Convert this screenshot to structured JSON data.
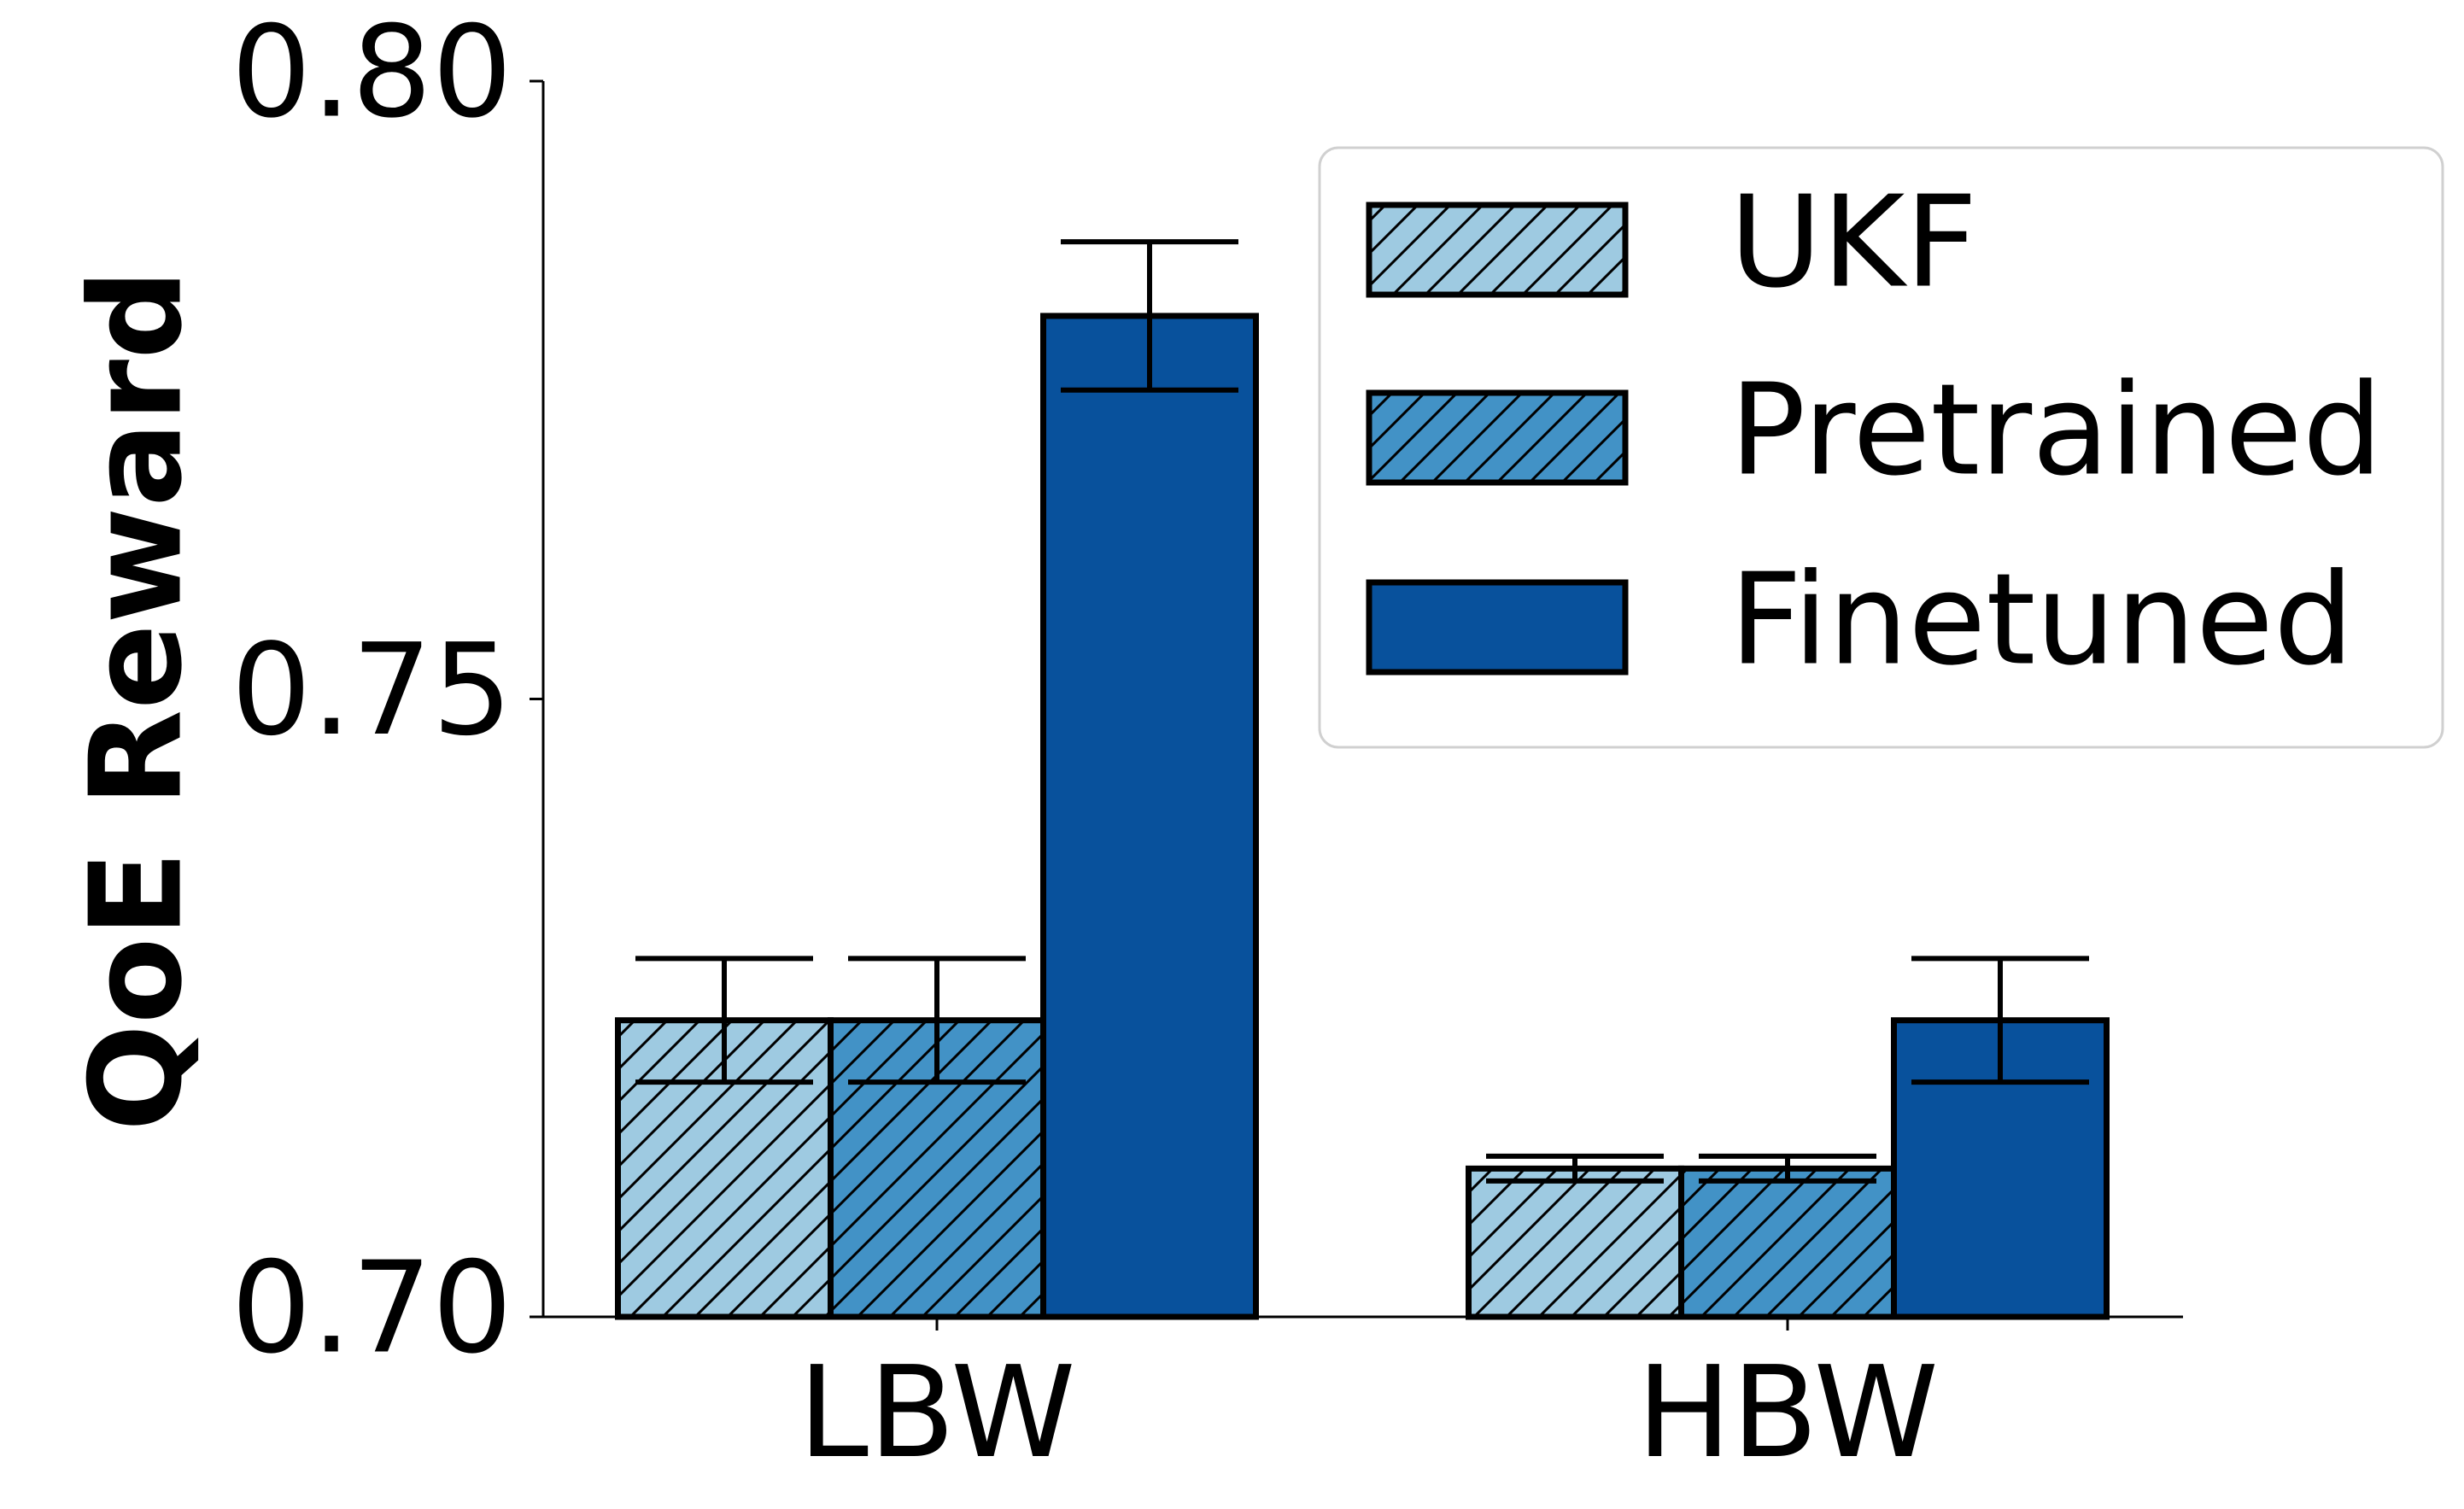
{
  "chart_data": {
    "type": "bar",
    "categories": [
      "LBW",
      "HBW"
    ],
    "series": [
      {
        "name": "UKF",
        "values": [
          0.724,
          0.712
        ],
        "errors": [
          0.005,
          0.001
        ],
        "color": "#9ecae1",
        "hatch": true
      },
      {
        "name": "Pretrained",
        "values": [
          0.724,
          0.712
        ],
        "errors": [
          0.005,
          0.001
        ],
        "color": "#4292c6",
        "hatch": true
      },
      {
        "name": "Finetuned",
        "values": [
          0.781,
          0.724
        ],
        "errors": [
          0.006,
          0.005
        ],
        "color": "#08519c",
        "hatch": false
      }
    ],
    "ylabel": "QoE Reward",
    "xlabel": "",
    "ylim": [
      0.7,
      0.8
    ],
    "yticks": [
      "0.70",
      "0.75",
      "0.80"
    ],
    "legend_position": "top-right",
    "grid": false
  }
}
